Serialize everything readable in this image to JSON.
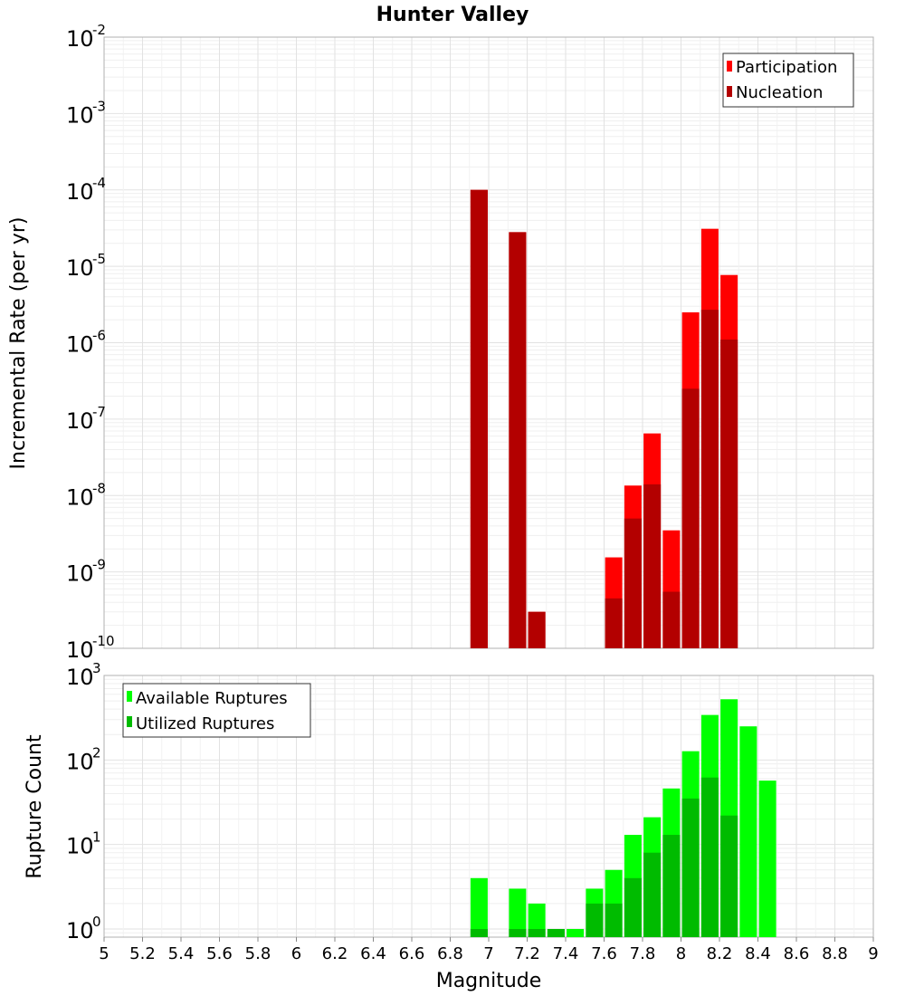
{
  "chart_data": [
    {
      "type": "bar",
      "title": "Hunter Valley",
      "xlabel": "",
      "ylabel": "Incremental Rate (per yr)",
      "yscale": "log",
      "ylim": [
        1e-10,
        0.01
      ],
      "xlim": [
        5,
        9
      ],
      "grid": true,
      "legend_position": "top-right",
      "series": [
        {
          "name": "Participation",
          "color": "#ff0000",
          "x": [
            6.95,
            7.15,
            7.25,
            7.65,
            7.75,
            7.85,
            7.95,
            8.05,
            8.15,
            8.25
          ],
          "values": [
            0.0001,
            2.8e-05,
            3e-10,
            1.55e-09,
            1.35e-08,
            6.5e-08,
            3.5e-09,
            2.5e-06,
            3.1e-05,
            7.7e-06
          ]
        },
        {
          "name": "Nucleation",
          "color": "#b30000",
          "x": [
            6.95,
            7.15,
            7.25,
            7.65,
            7.75,
            7.85,
            7.95,
            8.05,
            8.15,
            8.25
          ],
          "values": [
            0.0001,
            2.8e-05,
            3e-10,
            4.5e-10,
            5e-09,
            1.4e-08,
            5.5e-10,
            2.5e-07,
            2.7e-06,
            1.1e-06
          ]
        }
      ]
    },
    {
      "type": "bar",
      "title": "",
      "xlabel": "Magnitude",
      "ylabel": "Rupture Count",
      "yscale": "log",
      "ylim": [
        0.8,
        1000
      ],
      "xlim": [
        5,
        9
      ],
      "xticks": [
        "5",
        "5.2",
        "5.4",
        "5.6",
        "5.8",
        "6",
        "6.2",
        "6.4",
        "6.6",
        "6.8",
        "7",
        "7.2",
        "7.4",
        "7.6",
        "7.8",
        "8",
        "8.2",
        "8.4",
        "8.6",
        "8.8",
        "9"
      ],
      "grid": true,
      "legend_position": "top-left",
      "series": [
        {
          "name": "Available Ruptures",
          "color": "#00ff00",
          "x": [
            6.95,
            7.15,
            7.25,
            7.35,
            7.45,
            7.55,
            7.65,
            7.75,
            7.85,
            7.95,
            8.05,
            8.15,
            8.25,
            8.35,
            8.45
          ],
          "values": [
            4,
            3,
            2,
            1,
            1,
            3,
            5,
            13,
            21,
            46,
            127,
            341,
            523,
            250,
            57
          ]
        },
        {
          "name": "Utilized Ruptures",
          "color": "#00bb00",
          "x": [
            6.95,
            7.15,
            7.25,
            7.35,
            7.55,
            7.65,
            7.75,
            7.85,
            7.95,
            8.05,
            8.15,
            8.25
          ],
          "values": [
            1,
            1,
            1,
            1,
            2,
            2,
            4,
            8,
            13,
            35,
            62,
            22
          ]
        }
      ]
    }
  ]
}
